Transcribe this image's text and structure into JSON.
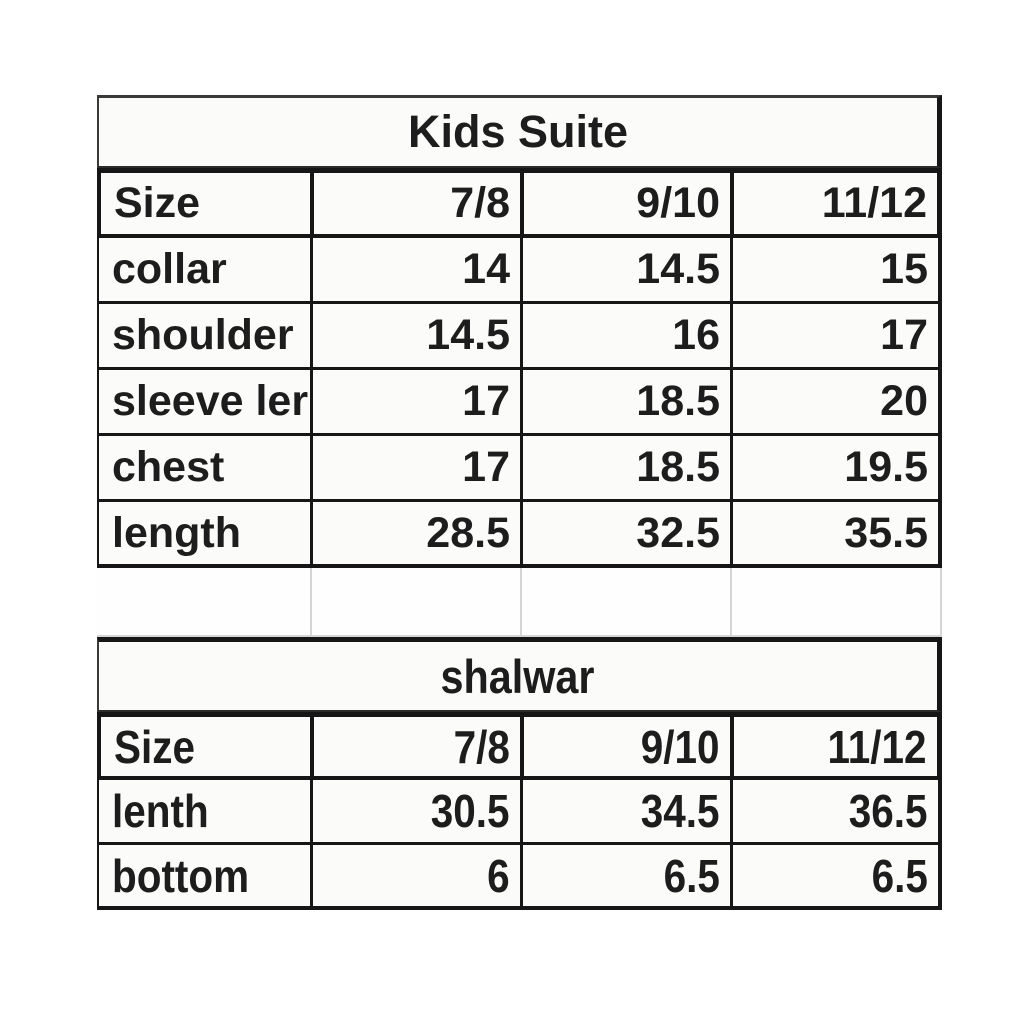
{
  "page": {
    "background": "#ffffff"
  },
  "colors": {
    "border": "#161616",
    "light_grid": "#d5d5d3",
    "cell_background": "#fbfbf9",
    "text": "#1d1d1d"
  },
  "tables": [
    {
      "title": "Kids Suite",
      "columns": [
        "Size",
        "7/8",
        "9/10",
        "11/12"
      ],
      "rows": [
        {
          "label": "collar",
          "values": [
            "14",
            "14.5",
            "15"
          ]
        },
        {
          "label": "shoulder",
          "values": [
            "14.5",
            "16",
            "17"
          ]
        },
        {
          "label": "sleeve ler",
          "values": [
            "17",
            "18.5",
            "20"
          ]
        },
        {
          "label": "chest",
          "values": [
            "17",
            "18.5",
            "19.5"
          ]
        },
        {
          "label": "length",
          "values": [
            "28.5",
            "32.5",
            "35.5"
          ]
        }
      ]
    },
    {
      "title": "shalwar",
      "columns": [
        "Size",
        "7/8",
        "9/10",
        "11/12"
      ],
      "rows": [
        {
          "label": "lenth",
          "values": [
            "30.5",
            "34.5",
            "36.5"
          ]
        },
        {
          "label": "bottom",
          "values": [
            "6",
            "6.5",
            "6.5"
          ]
        }
      ]
    }
  ]
}
